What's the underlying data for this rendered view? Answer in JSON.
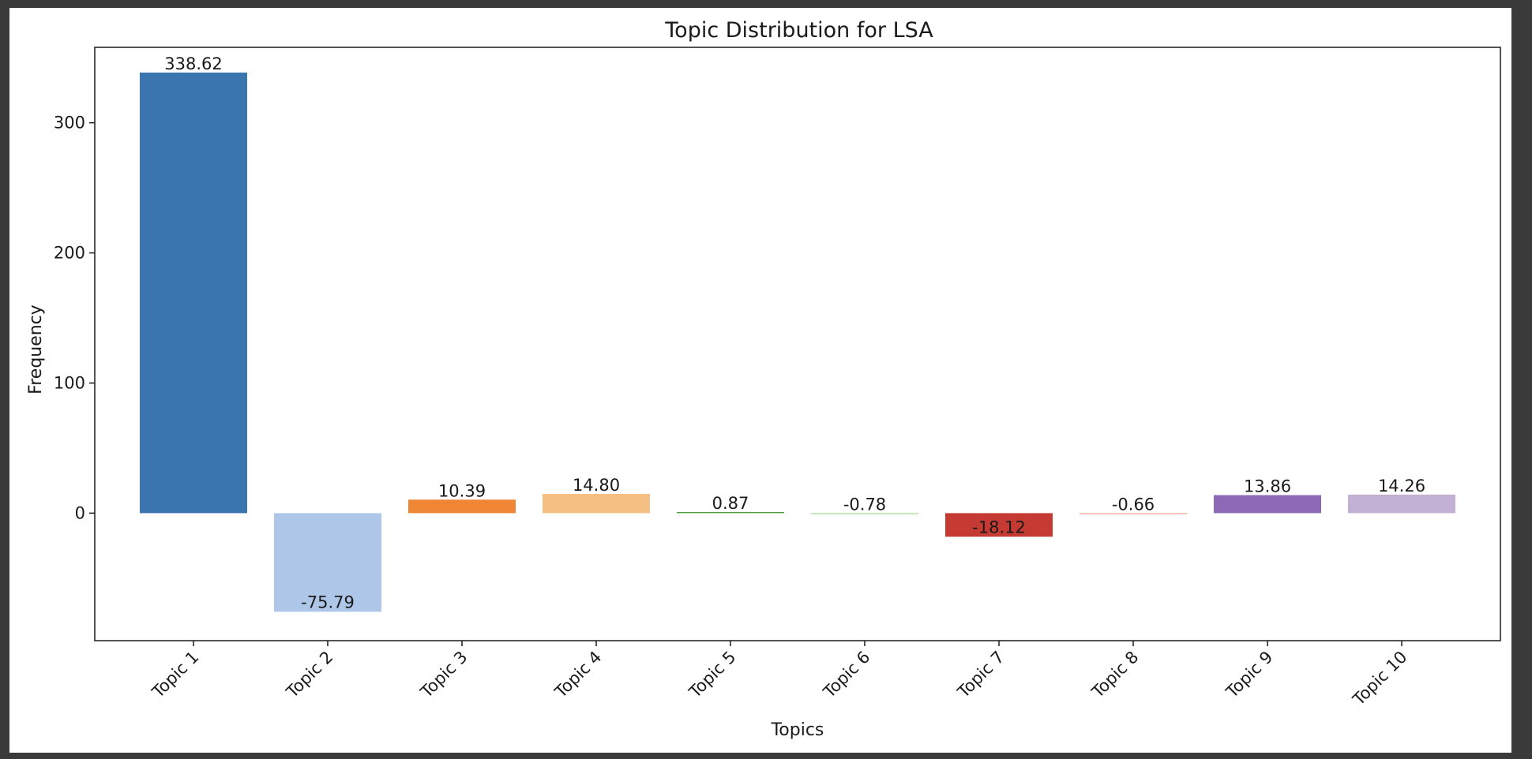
{
  "chart_data": {
    "type": "bar",
    "title": "Topic Distribution for LSA",
    "xlabel": "Topics",
    "ylabel": "Frequency",
    "categories": [
      "Topic 1",
      "Topic 2",
      "Topic 3",
      "Topic 4",
      "Topic 5",
      "Topic 6",
      "Topic 7",
      "Topic 8",
      "Topic 9",
      "Topic 10"
    ],
    "values": [
      338.62,
      -75.79,
      10.39,
      14.8,
      0.87,
      -0.78,
      -18.12,
      -0.66,
      13.86,
      14.26
    ],
    "value_labels": [
      "338.62",
      "-75.79",
      "10.39",
      "14.80",
      "0.87",
      "-0.78",
      "-18.12",
      "-0.66",
      "13.86",
      "14.26"
    ],
    "colors": [
      "#3b75af",
      "#aec7e8",
      "#ef8636",
      "#f5be82",
      "#519e3e",
      "#a8dc93",
      "#c53a32",
      "#f1928a",
      "#8d69b8",
      "#c2b0d5"
    ],
    "yticks": [
      0,
      100,
      200,
      300
    ],
    "ylim": [
      -98,
      358
    ],
    "grid": false,
    "legend": false
  }
}
